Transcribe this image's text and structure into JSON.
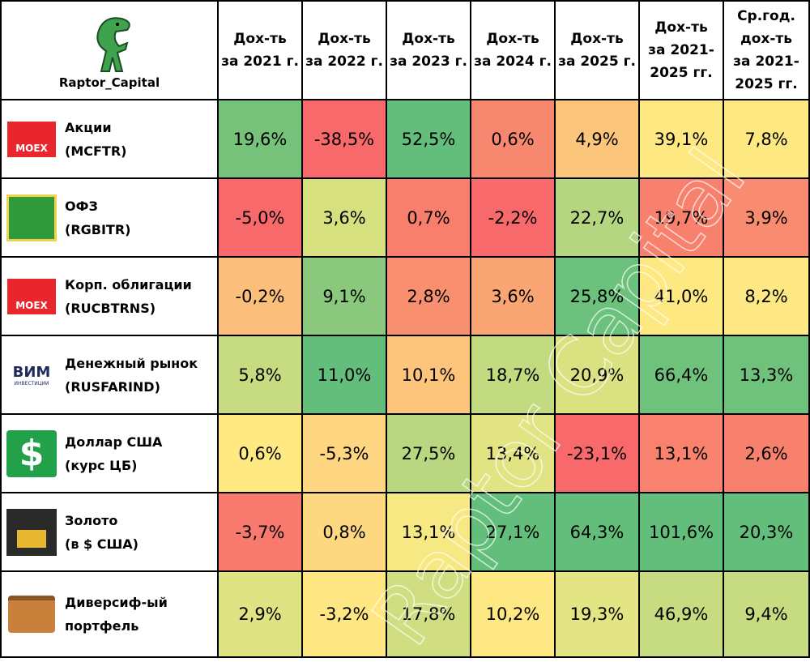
{
  "header": {
    "brand": "Raptor_Capital",
    "columns": [
      [
        "Дох-ть",
        "за 2021 г."
      ],
      [
        "Дох-ть",
        "за 2022 г."
      ],
      [
        "Дох-ть",
        "за 2023 г."
      ],
      [
        "Дох-ть",
        "за 2024 г."
      ],
      [
        "Дох-ть",
        "за 2025 г."
      ],
      [
        "Дох-ть",
        "за 2021-",
        "2025 гг."
      ],
      [
        "Ср.год.",
        "дох-ть",
        "за 2021-",
        "2025 гг."
      ]
    ]
  },
  "watermark": "Raptor Capital",
  "table": {
    "rows": [
      {
        "icon": "moex",
        "icon_text": "MOEX",
        "name": "Акции",
        "ticker": "(MCFTR)",
        "cells": [
          "19,6%",
          "-38,5%",
          "52,5%",
          "0,6%",
          "4,9%",
          "39,1%",
          "7,8%"
        ],
        "colors": [
          "#77c27b",
          "#f8696b",
          "#63be7b",
          "#f8876f",
          "#fcc57c",
          "#fde882",
          "#fde882"
        ]
      },
      {
        "icon": "ofz",
        "name": "ОФЗ",
        "ticker": "(RGBITR)",
        "cells": [
          "-5,0%",
          "3,6%",
          "0,7%",
          "-2,2%",
          "22,7%",
          "19,7%",
          "3,9%"
        ],
        "colors": [
          "#f8696b",
          "#d6e07f",
          "#f87e6e",
          "#f8696b",
          "#b5d680",
          "#f8816e",
          "#f98b70"
        ]
      },
      {
        "icon": "moex",
        "icon_text": "MOEX",
        "name": "Корп. облигации",
        "ticker": "(RUCBTRNS)",
        "cells": [
          "-0,2%",
          "9,1%",
          "2,8%",
          "3,6%",
          "25,8%",
          "41,0%",
          "8,2%"
        ],
        "colors": [
          "#fcbf7b",
          "#8ac87d",
          "#f8906f",
          "#faa574",
          "#6cc17c",
          "#fde882",
          "#fee883"
        ]
      },
      {
        "icon": "vim",
        "icon_text": "ВИМ",
        "icon_subtext": "ИНВЕСТИЦИИ",
        "name": "Денежный рынок",
        "ticker": "(RUSFARIND)",
        "cells": [
          "5,8%",
          "11,0%",
          "10,1%",
          "18,7%",
          "20,9%",
          "66,4%",
          "13,3%"
        ],
        "colors": [
          "#c7dc80",
          "#63be7b",
          "#fdc47c",
          "#c2da80",
          "#d9e181",
          "#6fc27b",
          "#6fc27b"
        ]
      },
      {
        "icon": "dollar",
        "icon_text": "$",
        "name": "Доллар США",
        "ticker": "(курс ЦБ)",
        "cells": [
          "0,6%",
          "-5,3%",
          "27,5%",
          "13,4%",
          "-23,1%",
          "13,1%",
          "2,6%"
        ],
        "colors": [
          "#fee983",
          "#fed580",
          "#b9d780",
          "#e2e383",
          "#f8696b",
          "#f8826e",
          "#f8816e"
        ]
      },
      {
        "icon": "gold",
        "name": "Золото",
        "ticker": "(в $ США)",
        "cells": [
          "-3,7%",
          "0,8%",
          "13,1%",
          "27,1%",
          "64,3%",
          "101,6%",
          "20,3%"
        ],
        "colors": [
          "#f87a6e",
          "#fed880",
          "#f6e983",
          "#63be7b",
          "#63be7b",
          "#63be7b",
          "#63be7b"
        ]
      },
      {
        "icon": "case",
        "name": "Диверсиф-ый",
        "ticker": "портфель",
        "cells": [
          "2,9%",
          "-3,2%",
          "17,8%",
          "10,2%",
          "19,3%",
          "46,9%",
          "9,4%"
        ],
        "colors": [
          "#e0e383",
          "#fee683",
          "#d0de81",
          "#fee883",
          "#e3e483",
          "#c7dc80",
          "#c7dc80"
        ]
      }
    ]
  }
}
